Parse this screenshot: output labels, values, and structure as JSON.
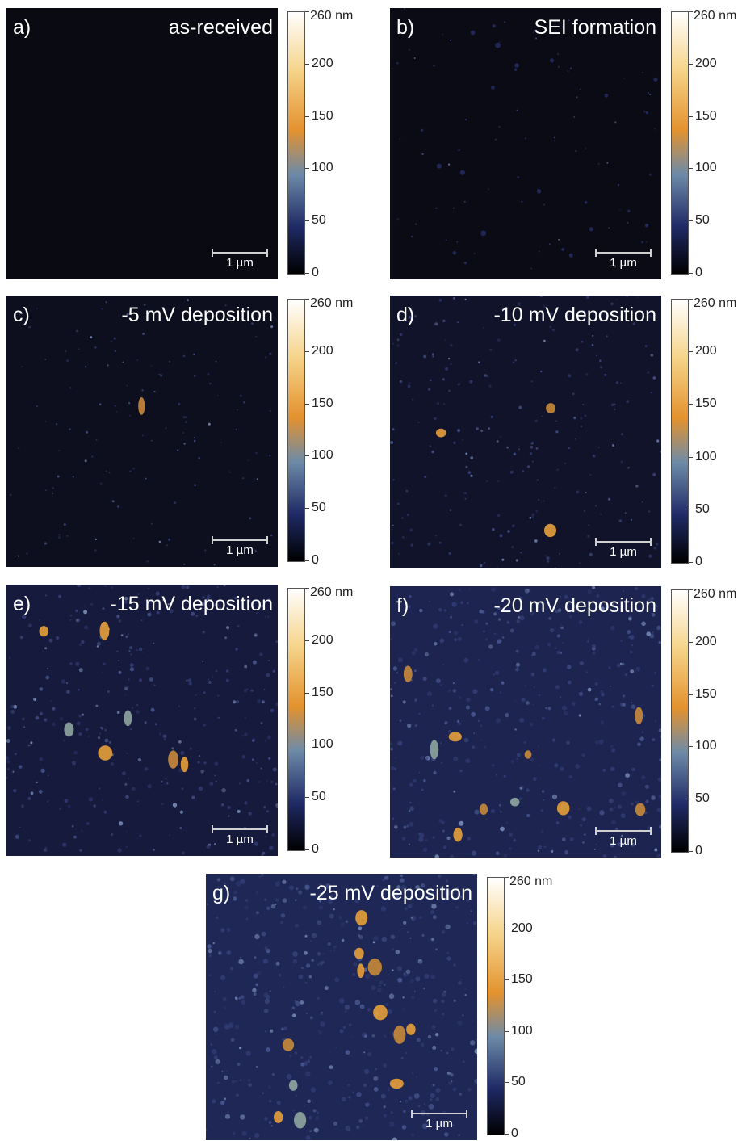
{
  "colorbar": {
    "ticks": [
      "260 nm",
      "200",
      "150",
      "100",
      "50",
      "0"
    ],
    "stops": [
      "#ffffff",
      "#f6d48a",
      "#e3922e",
      "#6d8aa8",
      "#1f2a66",
      "#000000"
    ]
  },
  "scalebar_label": "1 µm",
  "panels": [
    {
      "label": "a)",
      "title": "as-received",
      "density": 0
    },
    {
      "label": "b)",
      "title": "SEI formation",
      "density": 0.15
    },
    {
      "label": "c)",
      "title": "-5 mV deposition",
      "density": 0.3
    },
    {
      "label": "d)",
      "title": "-10 mV deposition",
      "density": 0.5
    },
    {
      "label": "e)",
      "title": "-15 mV deposition",
      "density": 0.75
    },
    {
      "label": "f)",
      "title": "-20 mV deposition",
      "density": 0.9
    },
    {
      "label": "g)",
      "title": "-25 mV deposition",
      "density": 1.0
    }
  ]
}
